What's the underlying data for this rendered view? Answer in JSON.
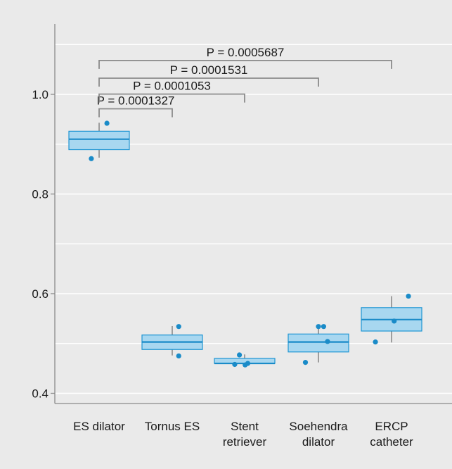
{
  "chart_data": {
    "type": "box",
    "title": "",
    "xlabel": "",
    "ylabel": "",
    "ylim": [
      0.4,
      1.12
    ],
    "yticks": [
      "0.4",
      "0.6",
      "0.8",
      "1.0"
    ],
    "grid": true,
    "colors": {
      "box_fill": "#a8d7f0",
      "box_stroke": "#1e95d3",
      "median": "#1a8bc8",
      "point": "#1a8bc8",
      "whisker": "#8a8a8a",
      "bracket": "#8a8a8a",
      "gridline": "#ffffff",
      "background": "#eaeaea"
    },
    "categories": [
      {
        "label_lines": [
          "ES dilator"
        ]
      },
      {
        "label_lines": [
          "Tornus ES"
        ]
      },
      {
        "label_lines": [
          "Stent",
          "retriever"
        ]
      },
      {
        "label_lines": [
          "Soehendra",
          "dilator"
        ]
      },
      {
        "label_lines": [
          "ERCP",
          "catheter"
        ]
      }
    ],
    "boxes": [
      {
        "category": "ES dilator",
        "whisker_low": 0.873,
        "q1": 0.889,
        "median": 0.91,
        "q3": 0.926,
        "whisker_high": 0.943,
        "points": [
          {
            "y": 0.871,
            "x_offset": -0.3
          },
          {
            "y": 0.942,
            "x_offset": 0.3
          }
        ]
      },
      {
        "category": "Tornus ES",
        "whisker_low": 0.476,
        "q1": 0.488,
        "median": 0.503,
        "q3": 0.517,
        "whisker_high": 0.535,
        "points": [
          {
            "y": 0.534,
            "x_offset": 0.25
          },
          {
            "y": 0.475,
            "x_offset": 0.25
          }
        ]
      },
      {
        "category": "Stent retriever",
        "whisker_low": 0.46,
        "q1": 0.46,
        "median": 0.46,
        "q3": 0.47,
        "whisker_high": 0.478,
        "points": [
          {
            "y": 0.458,
            "x_offset": -0.38
          },
          {
            "y": 0.477,
            "x_offset": -0.2
          },
          {
            "y": 0.457,
            "x_offset": 0.02
          },
          {
            "y": 0.46,
            "x_offset": 0.12
          }
        ]
      },
      {
        "category": "Soehendra dilator",
        "whisker_low": 0.462,
        "q1": 0.483,
        "median": 0.503,
        "q3": 0.519,
        "whisker_high": 0.535,
        "points": [
          {
            "y": 0.462,
            "x_offset": -0.5
          },
          {
            "y": 0.534,
            "x_offset": 0.0
          },
          {
            "y": 0.534,
            "x_offset": 0.2
          },
          {
            "y": 0.504,
            "x_offset": 0.35
          }
        ]
      },
      {
        "category": "ERCP catheter",
        "whisker_low": 0.502,
        "q1": 0.525,
        "median": 0.548,
        "q3": 0.572,
        "whisker_high": 0.595,
        "points": [
          {
            "y": 0.503,
            "x_offset": -0.62
          },
          {
            "y": 0.545,
            "x_offset": 0.1
          },
          {
            "y": 0.595,
            "x_offset": 0.65
          }
        ]
      }
    ],
    "comparisons": [
      {
        "from": 0,
        "to": 1,
        "bracket_y": 0.971,
        "label": "P = 0.0001327"
      },
      {
        "from": 0,
        "to": 2,
        "bracket_y": 1.0005,
        "label": "P = 0.0001053"
      },
      {
        "from": 0,
        "to": 3,
        "bracket_y": 1.0325,
        "label": "P = 0.0001531"
      },
      {
        "from": 0,
        "to": 4,
        "bracket_y": 1.068,
        "label": "P = 0.0005687"
      }
    ]
  }
}
